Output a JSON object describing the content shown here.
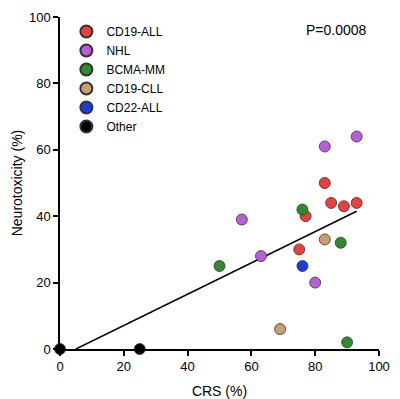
{
  "chart_data": {
    "type": "scatter",
    "x_label": "CRS (%)",
    "y_label": "Neurotoxicity (%)",
    "annotations": [
      "P=0.0008"
    ],
    "xlim": [
      0,
      100
    ],
    "ylim": [
      0,
      100
    ],
    "xticks": [
      0,
      20,
      40,
      60,
      80,
      100
    ],
    "yticks": [
      0,
      20,
      40,
      60,
      80,
      100
    ],
    "grid": false,
    "legend": "top left",
    "marker": "circle",
    "series": [
      {
        "name": "CD19-ALL",
        "color": "#e8413c",
        "x": [
          83,
          85,
          89,
          93,
          77,
          75
        ],
        "values": [
          50,
          44,
          43,
          44,
          40,
          30
        ]
      },
      {
        "name": "NHL",
        "color": "#b65fd8",
        "x": [
          93,
          83,
          57,
          63,
          80
        ],
        "values": [
          64,
          61,
          39,
          28,
          20
        ]
      },
      {
        "name": "BCMA-MM",
        "color": "#2e8b2e",
        "x": [
          76,
          50,
          88,
          90
        ],
        "values": [
          42,
          25,
          32,
          2
        ]
      },
      {
        "name": "CD19-CLL",
        "color": "#c8a070",
        "x": [
          83,
          69
        ],
        "values": [
          33,
          6
        ]
      },
      {
        "name": "CD22-ALL",
        "color": "#1a3de0",
        "x": [
          76
        ],
        "values": [
          25
        ]
      },
      {
        "name": "Other",
        "color": "#000000",
        "x": [
          0,
          25
        ],
        "values": [
          0,
          0
        ]
      }
    ],
    "trend_line": {
      "color": "#000000",
      "line_style": "solid",
      "x": [
        5,
        93
      ],
      "values": [
        0,
        41.5
      ]
    }
  }
}
